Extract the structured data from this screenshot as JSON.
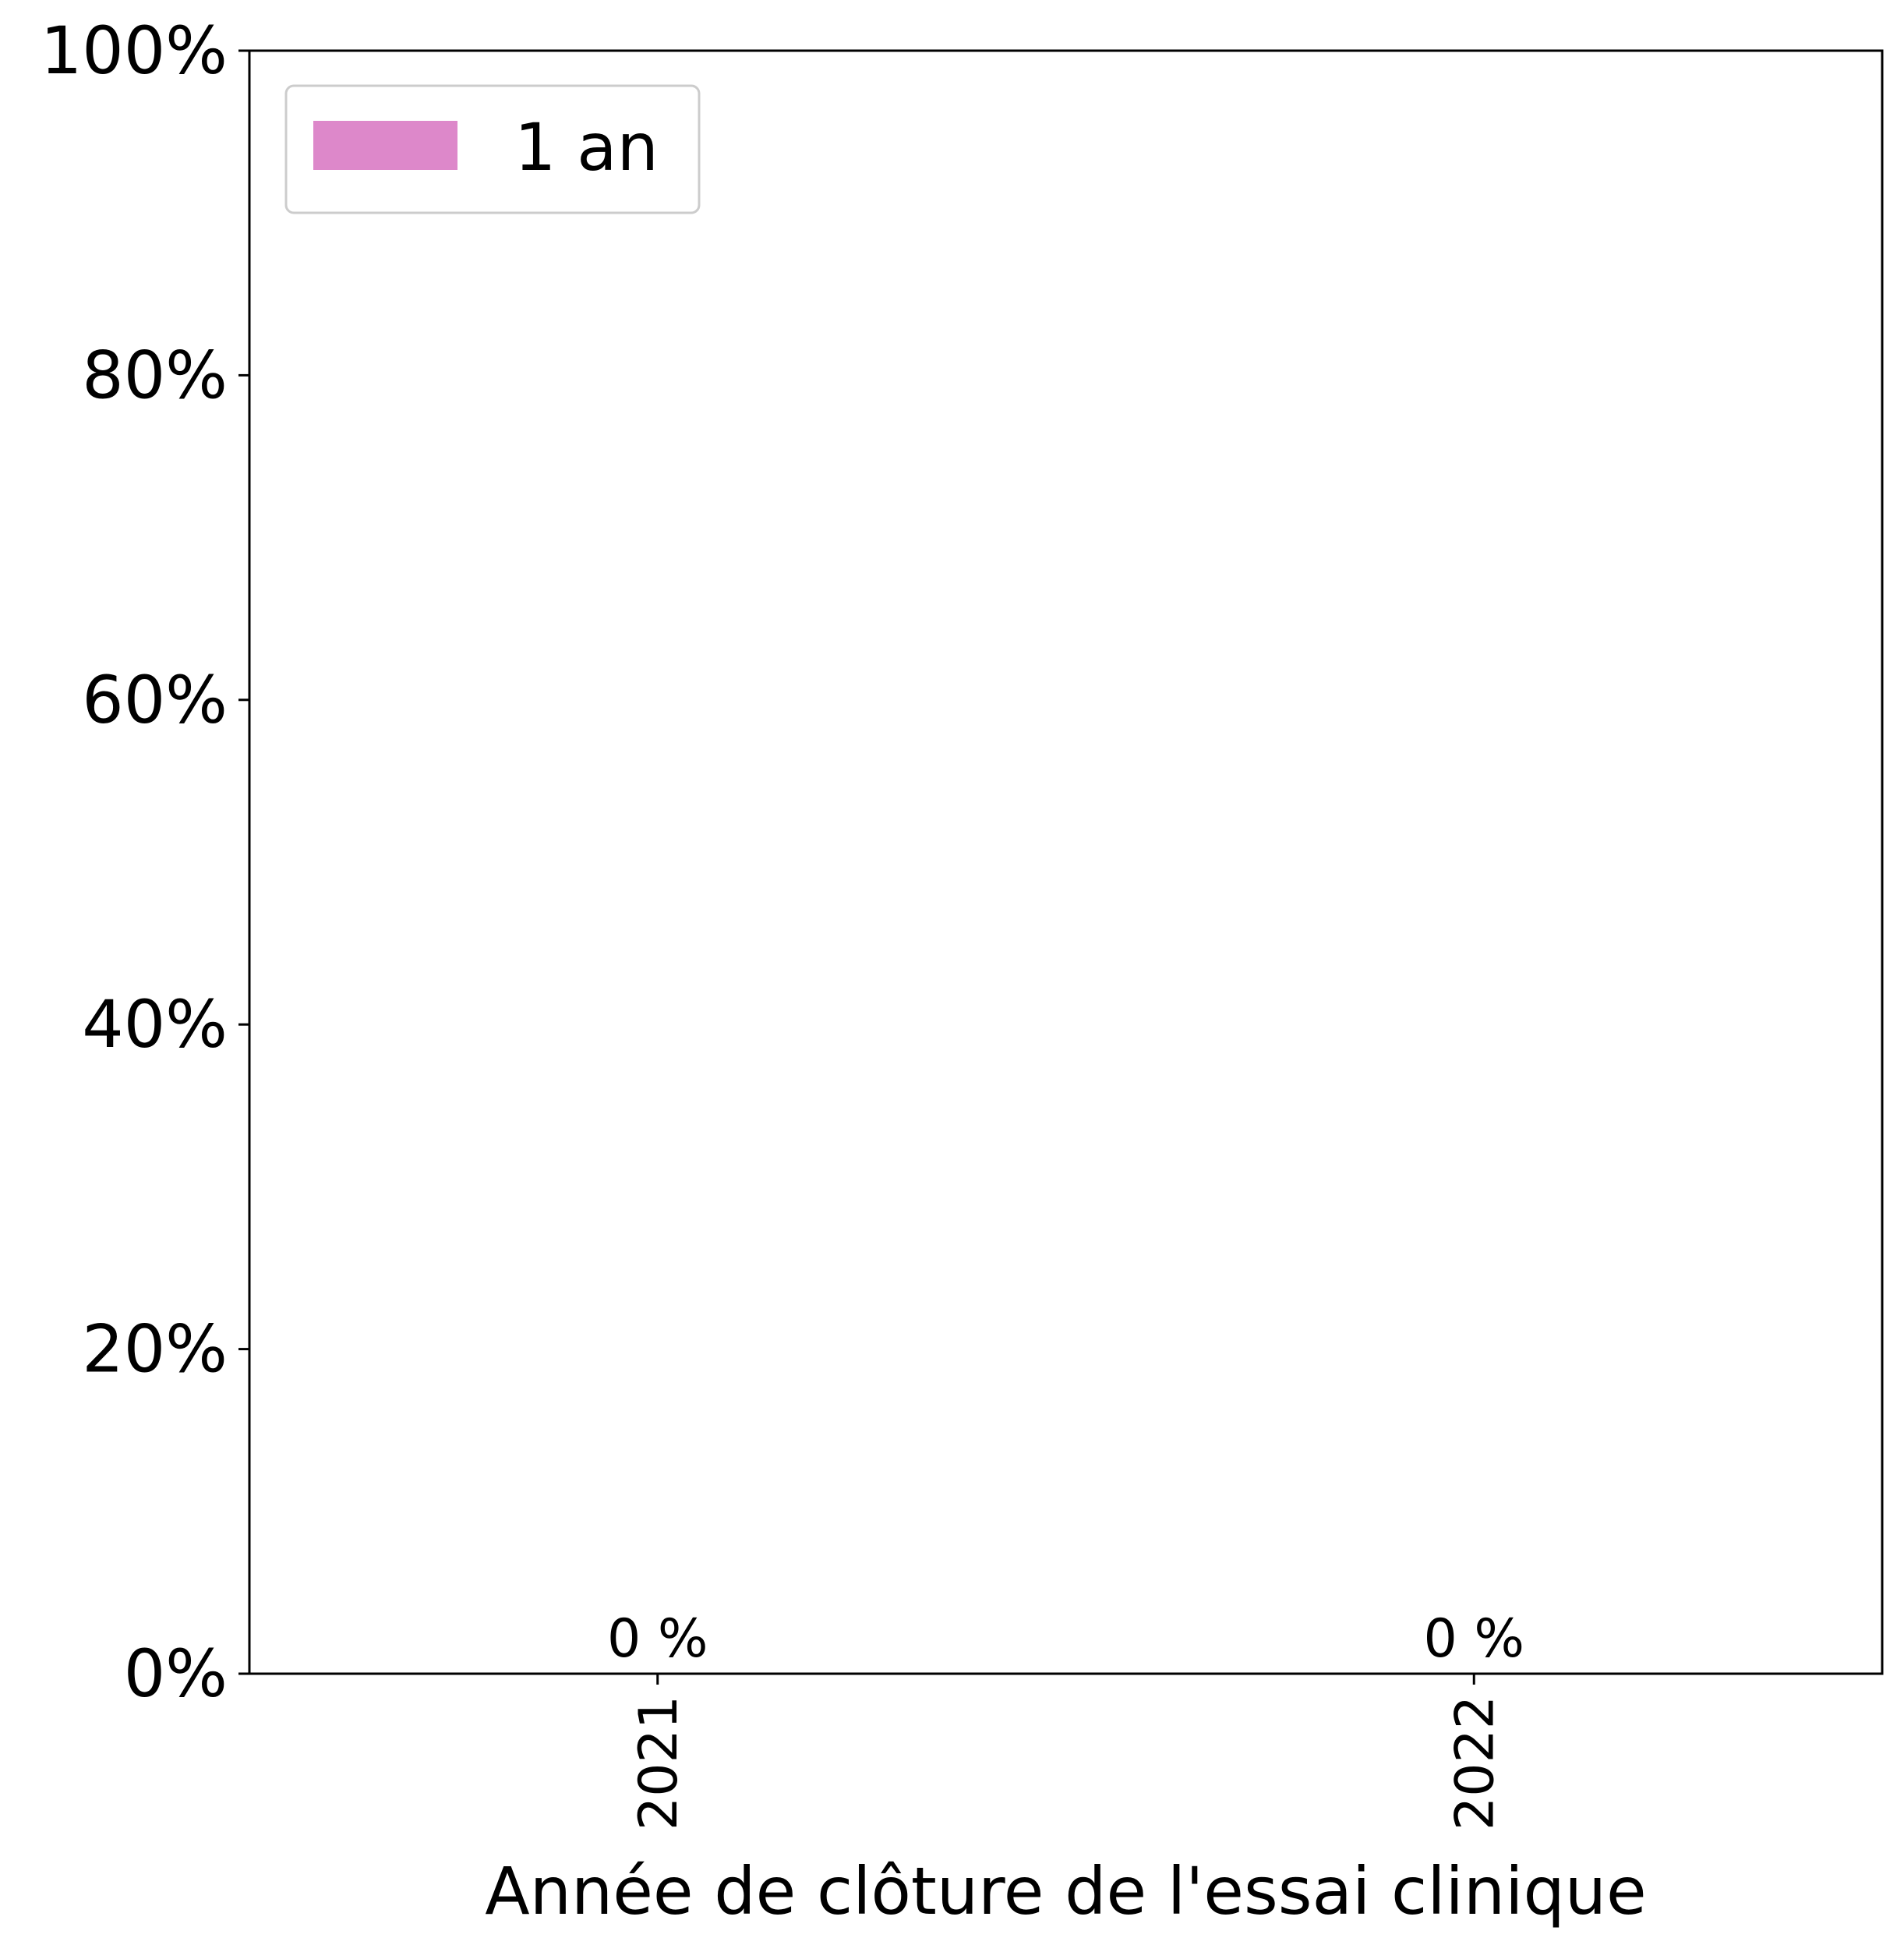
{
  "chart_data": {
    "type": "bar",
    "categories": [
      "2021",
      "2022"
    ],
    "series": [
      {
        "name": "1 an",
        "values": [
          0,
          0
        ],
        "color": "#dd88ca"
      }
    ],
    "data_labels": [
      "0 %",
      "0 %"
    ],
    "xlabel": "Année de clôture de l'essai clinique",
    "ylabel": "",
    "ylim": [
      0,
      100
    ],
    "yticks": [
      0,
      20,
      40,
      60,
      80,
      100
    ],
    "ytick_labels": [
      "0%",
      "20%",
      "40%",
      "60%",
      "80%",
      "100%"
    ],
    "grid": false,
    "legend_position": "top-left"
  }
}
